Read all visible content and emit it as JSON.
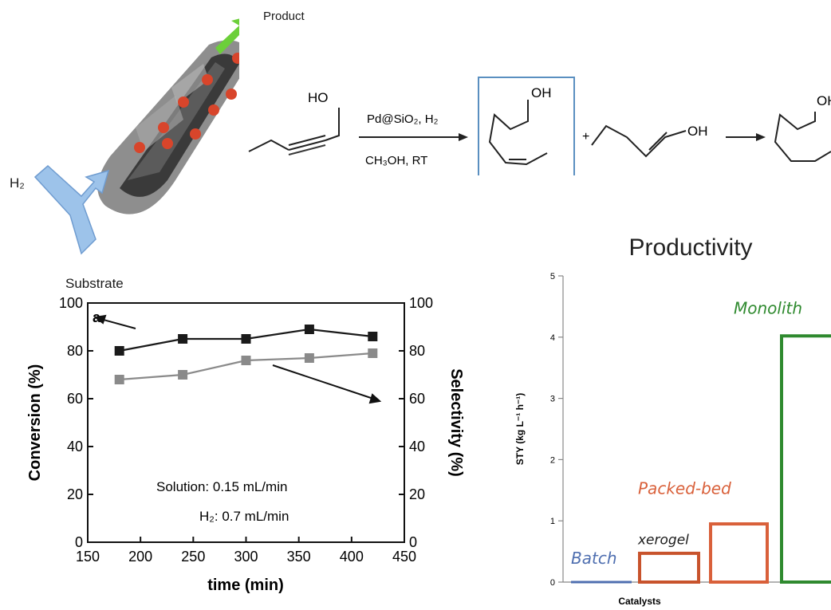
{
  "scheme": {
    "product_label": "Product",
    "h2_label": "H₂",
    "substrate_label": "Substrate",
    "substrate_oh": "HO",
    "reagent_top": "Pd@SiO₂, H₂",
    "reagent_bottom": "CH₃OH, RT",
    "cis_oh": "OH",
    "plus": "+",
    "trans_oh": "OH",
    "alkane_oh": "OH"
  },
  "chart_data": [
    {
      "type": "line",
      "panel_label": "a",
      "xlabel": "time (min)",
      "ylabel": "Conversion (%)",
      "y2label": "Selectivity (%)",
      "xlim": [
        150,
        450
      ],
      "ylim": [
        0,
        100
      ],
      "y2lim": [
        0,
        100
      ],
      "xticks": [
        150,
        200,
        250,
        300,
        350,
        400,
        450
      ],
      "yticks": [
        0,
        20,
        40,
        60,
        80,
        100
      ],
      "grid": false,
      "series": [
        {
          "axis": "left",
          "color": "#1a1a1a",
          "x": [
            180,
            240,
            300,
            360,
            420
          ],
          "y": [
            80,
            85,
            85,
            89,
            86
          ]
        },
        {
          "axis": "right",
          "color": "#8a8a8a",
          "x": [
            180,
            240,
            300,
            360,
            420
          ],
          "y": [
            68,
            70,
            76,
            77,
            79
          ]
        }
      ],
      "annotations": [
        "Solution: 0.15 mL/min",
        "H₂: 0.7 mL/min"
      ]
    },
    {
      "type": "bar",
      "title": "Productivity",
      "xlabel": "Catalysts",
      "ylabel": "STY (kg L⁻¹ h⁻¹)",
      "ylim": [
        0,
        5
      ],
      "yticks": [
        0,
        1,
        2,
        3,
        4,
        5
      ],
      "categories": [
        "Batch",
        "xerogel",
        "",
        "Monolith"
      ],
      "category_labels": [
        "Batch",
        "xerogel",
        "Packed-bed",
        "Monolith"
      ],
      "values": [
        0,
        0.47,
        0.95,
        4.02
      ],
      "colors": [
        "#4f6fb0",
        "#c8532c",
        "#d9603a",
        "#2f8a2f"
      ]
    }
  ]
}
